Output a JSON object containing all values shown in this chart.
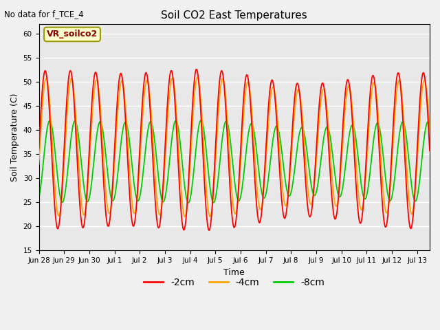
{
  "title": "Soil CO2 East Temperatures",
  "top_left_text": "No data for f_TCE_4",
  "legend_label_text": "VR_soilco2",
  "xlabel": "Time",
  "ylabel": "Soil Temperature (C)",
  "ylim": [
    15,
    62
  ],
  "yticks": [
    15,
    20,
    25,
    30,
    35,
    40,
    45,
    50,
    55,
    60
  ],
  "background_color": "#e8e8e8",
  "figure_background": "#f0f0f0",
  "line_colors": {
    "-2cm": "#ff0000",
    "-4cm": "#ffa500",
    "-8cm": "#00cc00"
  },
  "x_tick_labels": [
    "Jun 28",
    "Jun 29",
    "Jun 30",
    "Jul 1",
    "Jul 2",
    "Jul 3",
    "Jul 4",
    "Jul 5",
    "Jul 6",
    "Jul 7",
    "Jul 8",
    "Jul 9",
    "Jul 10",
    "Jul 11",
    "Jul 12",
    "Jul 13"
  ],
  "num_days": 15.5
}
